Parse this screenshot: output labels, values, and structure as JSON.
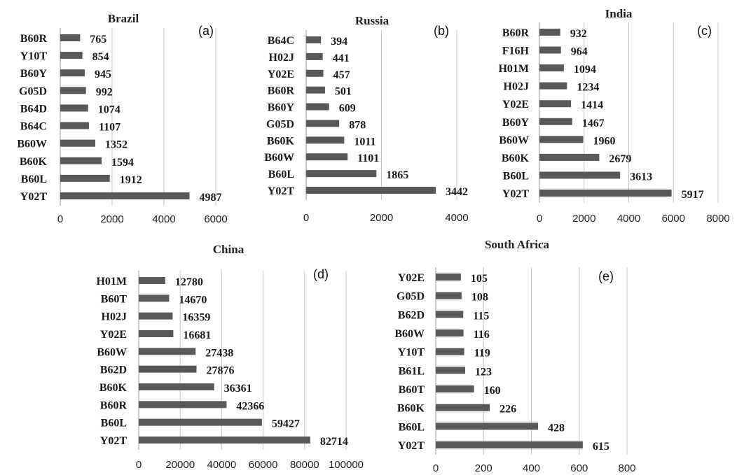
{
  "colors": {
    "bar": "#595959",
    "grid": "#c8c8c8",
    "axis": "#9a9a9a",
    "text": "#1a1a1a"
  },
  "chart_data": [
    {
      "type": "bar",
      "orientation": "horizontal",
      "title": "Brazil",
      "panel_label": "(a)",
      "categories": [
        "B60R",
        "Y10T",
        "B60Y",
        "G05D",
        "B64D",
        "B64C",
        "B60W",
        "B60K",
        "B60L",
        "Y02T"
      ],
      "values": [
        765,
        854,
        945,
        992,
        1074,
        1107,
        1352,
        1594,
        1912,
        4987
      ],
      "xlim": [
        0,
        6000
      ],
      "xticks": [
        0,
        2000,
        4000,
        6000
      ],
      "grid": true
    },
    {
      "type": "bar",
      "orientation": "horizontal",
      "title": "Russia",
      "panel_label": "(b)",
      "categories": [
        "B64C",
        "H02J",
        "Y02E",
        "B60R",
        "B60Y",
        "G05D",
        "B60K",
        "B60W",
        "B60L",
        "Y02T"
      ],
      "values": [
        394,
        441,
        457,
        501,
        609,
        878,
        1011,
        1101,
        1865,
        3442
      ],
      "xlim": [
        0,
        4000
      ],
      "xticks": [
        0,
        2000,
        4000
      ],
      "grid": true
    },
    {
      "type": "bar",
      "orientation": "horizontal",
      "title": "India",
      "panel_label": "(c)",
      "categories": [
        "B60R",
        "F16H",
        "H01M",
        "H02J",
        "Y02E",
        "B60Y",
        "B60W",
        "B60K",
        "B60L",
        "Y02T"
      ],
      "values": [
        932,
        964,
        1094,
        1234,
        1414,
        1467,
        1960,
        2679,
        3613,
        5917
      ],
      "xlim": [
        0,
        8000
      ],
      "xticks": [
        0,
        2000,
        4000,
        6000,
        8000
      ],
      "grid": true
    },
    {
      "type": "bar",
      "orientation": "horizontal",
      "title": "China",
      "panel_label": "(d)",
      "categories": [
        "H01M",
        "B60T",
        "H02J",
        "Y02E",
        "B60W",
        "B62D",
        "B60K",
        "B60R",
        "B60L",
        "Y02T"
      ],
      "values": [
        12780,
        14670,
        16359,
        16681,
        27438,
        27876,
        36361,
        42366,
        59427,
        82714
      ],
      "xlim": [
        0,
        100000
      ],
      "xticks": [
        0,
        20000,
        40000,
        60000,
        80000,
        100000
      ],
      "grid": true
    },
    {
      "type": "bar",
      "orientation": "horizontal",
      "title": "South Africa",
      "panel_label": "(e)",
      "categories": [
        "Y02E",
        "G05D",
        "B62D",
        "B60W",
        "Y10T",
        "B61L",
        "B60T",
        "B60K",
        "B60L",
        "Y02T"
      ],
      "values": [
        105,
        108,
        115,
        116,
        119,
        123,
        160,
        226,
        428,
        615
      ],
      "xlim": [
        0,
        800
      ],
      "xticks": [
        0,
        200,
        400,
        600,
        800
      ],
      "grid": true
    }
  ]
}
